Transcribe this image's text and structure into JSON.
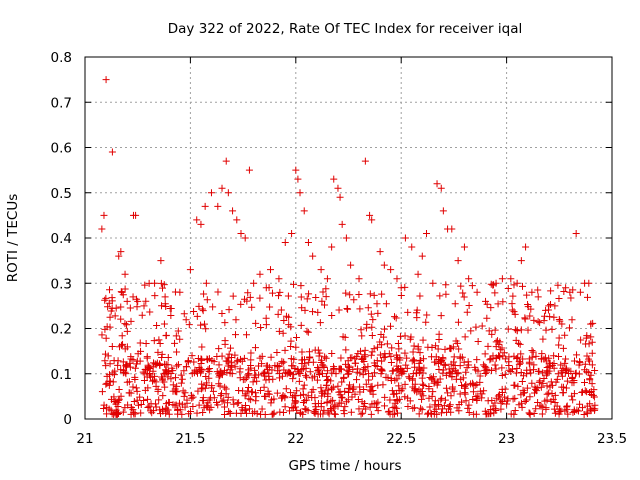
{
  "chart_data": {
    "type": "scatter",
    "title": "Day 322 of 2022, Rate Of TEC Index for receiver iqal",
    "xlabel": "GPS time / hours",
    "ylabel": "ROTI / TECUs",
    "xlim": [
      21,
      23.5
    ],
    "ylim": [
      0,
      0.8
    ],
    "xticks": [
      "21",
      "21.5",
      "22",
      "22.5",
      "23",
      "23.5"
    ],
    "yticks": [
      "0",
      "0.1",
      "0.2",
      "0.3",
      "0.4",
      "0.5",
      "0.6",
      "0.7",
      "0.8"
    ],
    "grid": true,
    "marker": "plus",
    "color": "#e00000",
    "series": [
      {
        "points": [
          [
            21.1,
            0.75
          ],
          [
            21.13,
            0.59
          ],
          [
            21.09,
            0.45
          ],
          [
            21.08,
            0.42
          ],
          [
            21.17,
            0.37
          ],
          [
            21.16,
            0.36
          ],
          [
            21.23,
            0.45
          ],
          [
            21.24,
            0.45
          ],
          [
            21.19,
            0.32
          ],
          [
            21.2,
            0.26
          ],
          [
            21.25,
            0.26
          ],
          [
            21.28,
            0.25
          ],
          [
            21.33,
            0.3
          ],
          [
            21.36,
            0.35
          ],
          [
            21.38,
            0.27
          ],
          [
            21.45,
            0.28
          ],
          [
            21.5,
            0.33
          ],
          [
            21.53,
            0.44
          ],
          [
            21.55,
            0.43
          ],
          [
            21.57,
            0.47
          ],
          [
            21.6,
            0.5
          ],
          [
            21.63,
            0.47
          ],
          [
            21.65,
            0.51
          ],
          [
            21.67,
            0.57
          ],
          [
            21.68,
            0.5
          ],
          [
            21.7,
            0.46
          ],
          [
            21.72,
            0.44
          ],
          [
            21.74,
            0.41
          ],
          [
            21.76,
            0.4
          ],
          [
            21.78,
            0.55
          ],
          [
            21.8,
            0.3
          ],
          [
            21.83,
            0.32
          ],
          [
            21.86,
            0.29
          ],
          [
            21.88,
            0.33
          ],
          [
            21.92,
            0.31
          ],
          [
            21.95,
            0.39
          ],
          [
            21.98,
            0.41
          ],
          [
            22.0,
            0.55
          ],
          [
            22.01,
            0.53
          ],
          [
            22.02,
            0.5
          ],
          [
            22.04,
            0.46
          ],
          [
            22.06,
            0.39
          ],
          [
            22.08,
            0.36
          ],
          [
            22.12,
            0.33
          ],
          [
            22.15,
            0.31
          ],
          [
            22.17,
            0.38
          ],
          [
            22.18,
            0.53
          ],
          [
            22.2,
            0.51
          ],
          [
            22.21,
            0.49
          ],
          [
            22.22,
            0.43
          ],
          [
            22.24,
            0.4
          ],
          [
            22.26,
            0.34
          ],
          [
            22.3,
            0.31
          ],
          [
            22.33,
            0.57
          ],
          [
            22.35,
            0.45
          ],
          [
            22.36,
            0.44
          ],
          [
            22.4,
            0.37
          ],
          [
            22.42,
            0.34
          ],
          [
            22.45,
            0.33
          ],
          [
            22.48,
            0.31
          ],
          [
            22.5,
            0.29
          ],
          [
            22.52,
            0.4
          ],
          [
            22.55,
            0.38
          ],
          [
            22.58,
            0.32
          ],
          [
            22.6,
            0.36
          ],
          [
            22.62,
            0.41
          ],
          [
            22.65,
            0.3
          ],
          [
            22.67,
            0.52
          ],
          [
            22.69,
            0.51
          ],
          [
            22.7,
            0.46
          ],
          [
            22.72,
            0.42
          ],
          [
            22.74,
            0.42
          ],
          [
            22.77,
            0.35
          ],
          [
            22.8,
            0.38
          ],
          [
            22.82,
            0.31
          ],
          [
            22.86,
            0.28
          ],
          [
            22.9,
            0.26
          ],
          [
            22.95,
            0.3
          ],
          [
            22.98,
            0.31
          ],
          [
            23.02,
            0.31
          ],
          [
            23.05,
            0.3
          ],
          [
            23.07,
            0.35
          ],
          [
            23.09,
            0.38
          ],
          [
            23.12,
            0.28
          ],
          [
            23.15,
            0.27
          ],
          [
            23.2,
            0.25
          ],
          [
            23.25,
            0.22
          ],
          [
            23.28,
            0.29
          ],
          [
            23.3,
            0.28
          ],
          [
            23.33,
            0.41
          ],
          [
            23.35,
            0.28
          ],
          [
            23.37,
            0.3
          ],
          [
            23.39,
            0.3
          ],
          [
            23.4,
            0.21
          ]
        ]
      }
    ],
    "dense_region": {
      "x_range": [
        21.08,
        23.42
      ],
      "baseline_y_range": [
        0.01,
        0.14
      ],
      "upper_y_range": [
        0.1,
        0.3
      ],
      "approx_point_count": 1500
    }
  }
}
